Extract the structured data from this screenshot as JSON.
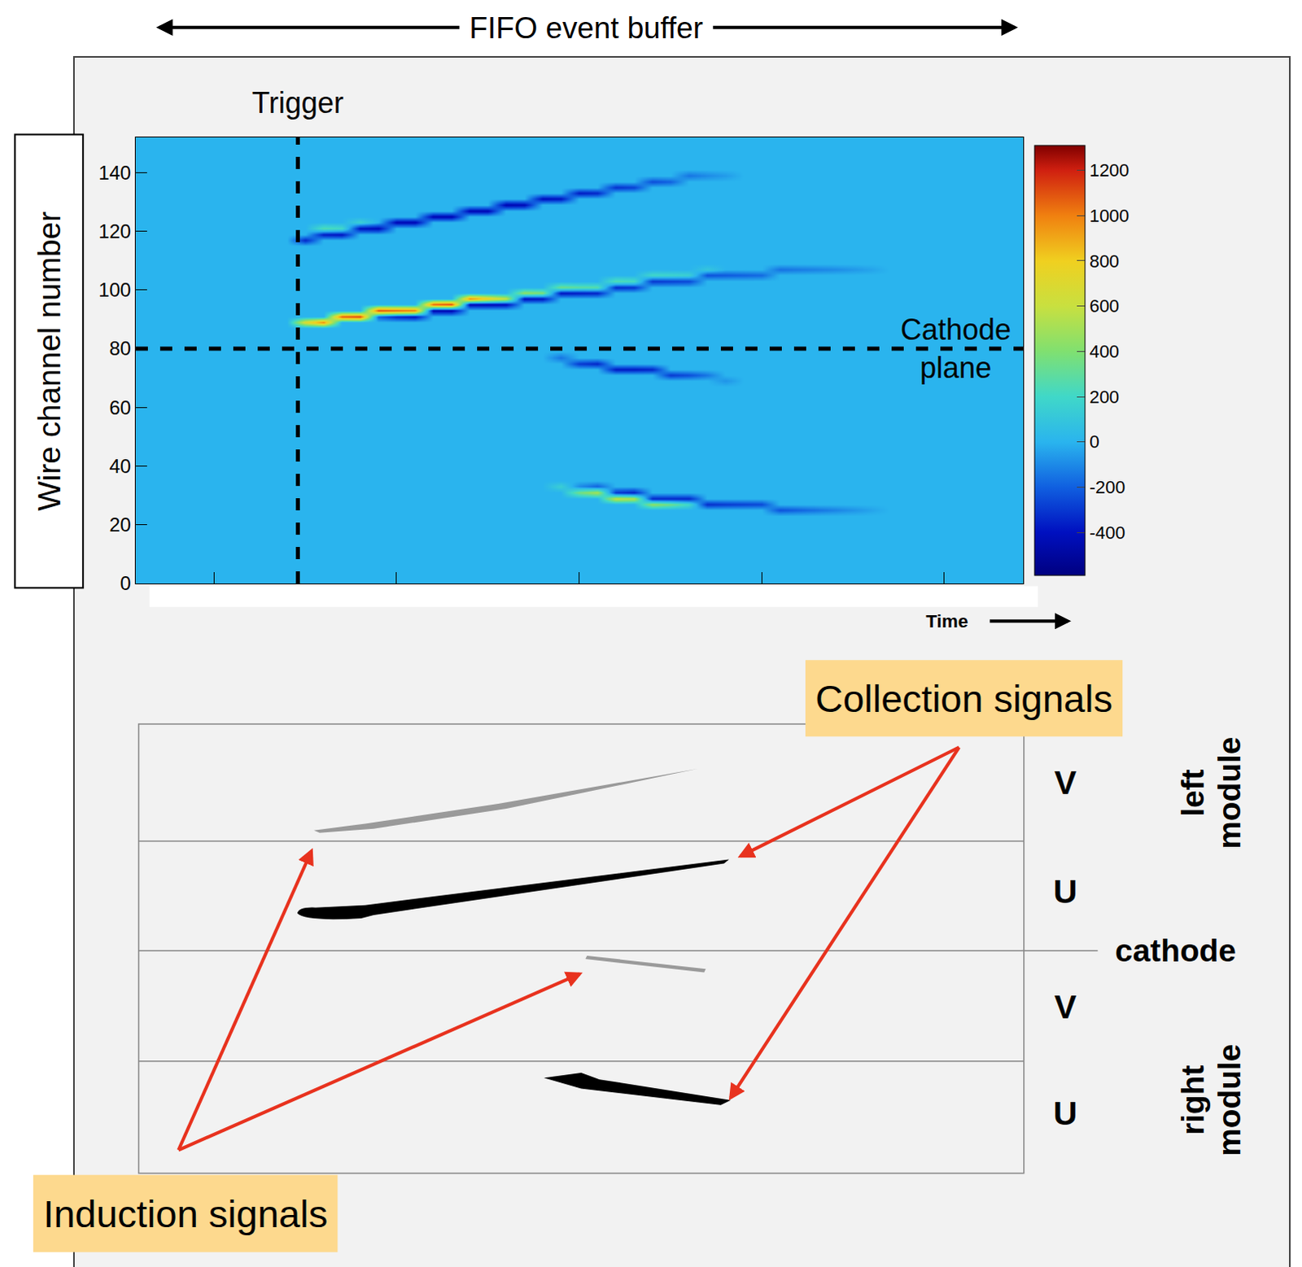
{
  "chart_data": {
    "type": "heatmap",
    "title": "FIFO event buffer",
    "x_label": "Time",
    "y_label": "Wire channel number",
    "xlim": [
      978.6,
      1221.6
    ],
    "xticks": [
      1000,
      1050,
      1100,
      1150,
      1200
    ],
    "ylim": [
      0,
      152
    ],
    "yticks": [
      0,
      20,
      40,
      60,
      80,
      100,
      120,
      140
    ],
    "tick_labels": "y",
    "grid": false,
    "x0": 980,
    "dx": 5,
    "y0": 1,
    "dy": 2,
    "z_background": 0,
    "cells": [
      [
        1025,
        117,
        -350
      ],
      [
        1030,
        119,
        -380
      ],
      [
        1035,
        119,
        -400
      ],
      [
        1040,
        121,
        -400
      ],
      [
        1045,
        121,
        -420
      ],
      [
        1050,
        123,
        -450
      ],
      [
        1055,
        123,
        -450
      ],
      [
        1060,
        125,
        -450
      ],
      [
        1065,
        125,
        -450
      ],
      [
        1070,
        127,
        -450
      ],
      [
        1075,
        127,
        -450
      ],
      [
        1080,
        129,
        -450
      ],
      [
        1085,
        129,
        -430
      ],
      [
        1090,
        131,
        -420
      ],
      [
        1095,
        131,
        -400
      ],
      [
        1100,
        133,
        -380
      ],
      [
        1105,
        133,
        -350
      ],
      [
        1110,
        135,
        -320
      ],
      [
        1115,
        135,
        -280
      ],
      [
        1120,
        137,
        -250
      ],
      [
        1125,
        137,
        -200
      ],
      [
        1130,
        139,
        -150
      ],
      [
        1135,
        139,
        -100
      ],
      [
        1140,
        139,
        -60
      ],
      [
        1030,
        121,
        250
      ],
      [
        1035,
        121,
        200
      ],
      [
        1040,
        123,
        150
      ],
      [
        1025,
        89,
        700
      ],
      [
        1030,
        89,
        1000
      ],
      [
        1035,
        91,
        1100
      ],
      [
        1040,
        91,
        1150
      ],
      [
        1045,
        93,
        1100
      ],
      [
        1050,
        93,
        1050
      ],
      [
        1055,
        93,
        1000
      ],
      [
        1060,
        95,
        1100
      ],
      [
        1065,
        95,
        1150
      ],
      [
        1070,
        97,
        1000
      ],
      [
        1075,
        97,
        800
      ],
      [
        1080,
        97,
        600
      ],
      [
        1085,
        99,
        450
      ],
      [
        1090,
        99,
        400
      ],
      [
        1095,
        101,
        350
      ],
      [
        1100,
        101,
        300
      ],
      [
        1105,
        101,
        280
      ],
      [
        1110,
        103,
        250
      ],
      [
        1115,
        103,
        220
      ],
      [
        1120,
        105,
        200
      ],
      [
        1125,
        105,
        180
      ],
      [
        1130,
        105,
        150
      ],
      [
        1135,
        107,
        100
      ],
      [
        1045,
        91,
        -200
      ],
      [
        1050,
        91,
        -350
      ],
      [
        1055,
        91,
        -400
      ],
      [
        1060,
        93,
        -450
      ],
      [
        1065,
        93,
        -450
      ],
      [
        1070,
        95,
        -450
      ],
      [
        1075,
        95,
        -450
      ],
      [
        1080,
        95,
        -430
      ],
      [
        1085,
        97,
        -420
      ],
      [
        1090,
        97,
        -400
      ],
      [
        1095,
        99,
        -400
      ],
      [
        1100,
        99,
        -380
      ],
      [
        1105,
        99,
        -360
      ],
      [
        1110,
        101,
        -340
      ],
      [
        1115,
        101,
        -320
      ],
      [
        1120,
        103,
        -300
      ],
      [
        1125,
        103,
        -280
      ],
      [
        1130,
        103,
        -260
      ],
      [
        1135,
        105,
        -240
      ],
      [
        1140,
        105,
        -220
      ],
      [
        1145,
        105,
        -200
      ],
      [
        1150,
        105,
        -180
      ],
      [
        1155,
        107,
        -160
      ],
      [
        1160,
        107,
        -140
      ],
      [
        1165,
        107,
        -120
      ],
      [
        1170,
        107,
        -100
      ],
      [
        1175,
        107,
        -70
      ],
      [
        1180,
        107,
        -40
      ],
      [
        1095,
        77,
        -150
      ],
      [
        1100,
        75,
        -300
      ],
      [
        1105,
        75,
        -350
      ],
      [
        1110,
        73,
        -380
      ],
      [
        1115,
        73,
        -380
      ],
      [
        1120,
        73,
        -350
      ],
      [
        1125,
        71,
        -300
      ],
      [
        1130,
        71,
        -250
      ],
      [
        1135,
        71,
        -150
      ],
      [
        1140,
        69,
        -80
      ],
      [
        1095,
        33,
        150
      ],
      [
        1100,
        31,
        350
      ],
      [
        1105,
        31,
        500
      ],
      [
        1110,
        29,
        600
      ],
      [
        1115,
        29,
        550
      ],
      [
        1120,
        27,
        450
      ],
      [
        1125,
        27,
        350
      ],
      [
        1130,
        27,
        200
      ],
      [
        1100,
        33,
        -100
      ],
      [
        1105,
        33,
        -200
      ],
      [
        1110,
        31,
        -300
      ],
      [
        1115,
        31,
        -350
      ],
      [
        1120,
        29,
        -350
      ],
      [
        1125,
        29,
        -350
      ],
      [
        1130,
        29,
        -350
      ],
      [
        1135,
        27,
        -330
      ],
      [
        1140,
        27,
        -300
      ],
      [
        1145,
        27,
        -280
      ],
      [
        1150,
        27,
        -260
      ],
      [
        1155,
        25,
        -240
      ],
      [
        1160,
        25,
        -200
      ],
      [
        1165,
        25,
        -160
      ],
      [
        1170,
        25,
        -120
      ],
      [
        1175,
        25,
        -80
      ],
      [
        1180,
        25,
        -40
      ]
    ],
    "zlim": [
      -590,
      1310
    ],
    "zticks": [
      -400,
      -200,
      0,
      200,
      400,
      600,
      800,
      1000,
      1200
    ],
    "annotations": [
      {
        "text": "Trigger",
        "x": 1023
      },
      {
        "text": "Cathode plane",
        "y": 80
      }
    ]
  },
  "diagram": {
    "planes": [
      "V",
      "U",
      "V",
      "U"
    ],
    "modules": [
      "left module",
      "right module"
    ],
    "cathode": "cathode",
    "collection_label": "Collection signals",
    "induction_label": "Induction signals"
  }
}
